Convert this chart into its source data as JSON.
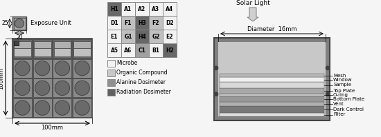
{
  "grid_labels": [
    [
      "H1",
      "A1",
      "A2",
      "A3",
      "A4"
    ],
    [
      "D1",
      "F1",
      "H3",
      "F2",
      "D2"
    ],
    [
      "E1",
      "G1",
      "H4",
      "G2",
      "E2"
    ],
    [
      "A5",
      "A6",
      "C1",
      "B1",
      "H2"
    ]
  ],
  "grid_colors": [
    [
      "dark",
      "white",
      "white",
      "white",
      "white"
    ],
    [
      "white",
      "light",
      "dark",
      "light",
      "white"
    ],
    [
      "white",
      "light",
      "dark",
      "light",
      "white"
    ],
    [
      "white",
      "white",
      "medium",
      "white",
      "dark"
    ]
  ],
  "color_map": {
    "white": "#f2f2f2",
    "light": "#c0c0c0",
    "medium": "#a0a0a0",
    "dark": "#686868"
  },
  "legend_items": [
    {
      "label": "Microbe",
      "color": "#f2f2f2"
    },
    {
      "label": "Organic Compound",
      "color": "#c8c8c8"
    },
    {
      "label": "Alanine Dosimeter",
      "color": "#909090"
    },
    {
      "label": "Radiation Dosimeter",
      "color": "#606060"
    }
  ],
  "cross_section_labels": [
    "Mesh",
    "Window",
    "Sample",
    "Top Plate",
    "O-ring",
    "Bottom Plate",
    "Vent",
    "Dark Control",
    "Filter"
  ],
  "cross_section_layer_colors": [
    "#b8b8b8",
    "#f0f0f0",
    "#d8d8d8",
    "#a8a8a8",
    "#c0c0c0",
    "#989898",
    "#b0b0b0",
    "#787878",
    "#e0e0e0"
  ],
  "cross_section_layer_heights": [
    5,
    7,
    9,
    8,
    4,
    8,
    6,
    10,
    5
  ],
  "solar_light_text": "Solar Light",
  "diameter_text": "Diameter  16mm",
  "main_photo_dim_x": "100mm",
  "main_photo_dim_y": "100mm",
  "exposure_unit_text": "Exposure Unit",
  "exposure_unit_dims": [
    "25",
    "20"
  ],
  "bg_color": "#f5f5f5"
}
